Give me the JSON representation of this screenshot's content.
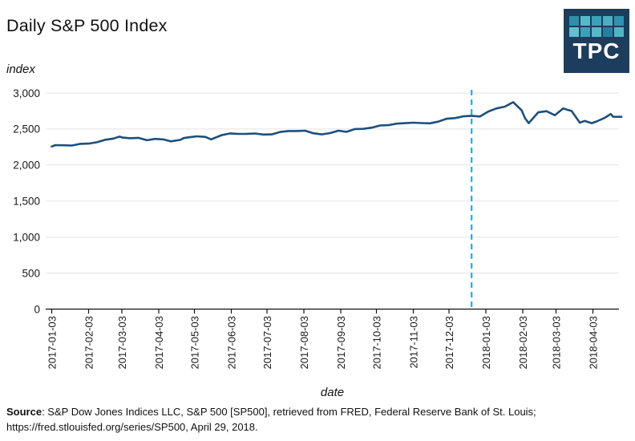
{
  "page": {
    "title": "Daily S&P 500 Index"
  },
  "logo": {
    "text": "TPC",
    "background": "#1c3d5c",
    "squares": [
      "#2e8fa9",
      "#54bac9",
      "#3aa2b8",
      "#49afc1",
      "#2f93ad",
      "#60c1cf",
      "#3aa2b8",
      "#55bac8",
      "#24809d",
      "#4fb5c4"
    ]
  },
  "chart_data": {
    "type": "line",
    "title": "Daily S&P 500 Index",
    "xlabel": "date",
    "ylabel": "index",
    "ylim": [
      0,
      3000
    ],
    "grid": true,
    "yticks": [
      0,
      500,
      1000,
      1500,
      2000,
      2500,
      3000
    ],
    "ytick_labels": [
      "0",
      "500",
      "1,000",
      "1,500",
      "2,000",
      "2,500",
      "3,000"
    ],
    "xticks": [
      "2017-01-03",
      "2017-02-03",
      "2017-03-03",
      "2017-04-03",
      "2017-05-03",
      "2017-06-03",
      "2017-07-03",
      "2017-08-03",
      "2017-09-03",
      "2017-10-03",
      "2017-11-03",
      "2017-12-03",
      "2018-01-03",
      "2018-02-03",
      "2018-03-03",
      "2018-04-03"
    ],
    "vline": {
      "date": "2017-12-22",
      "color": "#29a9e0",
      "style": "dashed"
    },
    "series": [
      {
        "name": "S&P 500",
        "color": "#1d4f7d",
        "points": [
          [
            "2017-01-03",
            2257.83
          ],
          [
            "2017-01-06",
            2276.98
          ],
          [
            "2017-01-13",
            2274.64
          ],
          [
            "2017-01-20",
            2271.31
          ],
          [
            "2017-01-27",
            2294.69
          ],
          [
            "2017-02-03",
            2297.42
          ],
          [
            "2017-02-10",
            2316.1
          ],
          [
            "2017-02-17",
            2351.16
          ],
          [
            "2017-02-24",
            2367.34
          ],
          [
            "2017-03-01",
            2395.96
          ],
          [
            "2017-03-03",
            2383.12
          ],
          [
            "2017-03-10",
            2372.6
          ],
          [
            "2017-03-17",
            2378.25
          ],
          [
            "2017-03-24",
            2343.98
          ],
          [
            "2017-03-31",
            2362.72
          ],
          [
            "2017-04-07",
            2355.54
          ],
          [
            "2017-04-13",
            2328.95
          ],
          [
            "2017-04-21",
            2348.69
          ],
          [
            "2017-04-24",
            2374.15
          ],
          [
            "2017-04-28",
            2384.2
          ],
          [
            "2017-05-05",
            2399.29
          ],
          [
            "2017-05-12",
            2390.9
          ],
          [
            "2017-05-17",
            2357.03
          ],
          [
            "2017-05-26",
            2415.82
          ],
          [
            "2017-06-02",
            2439.07
          ],
          [
            "2017-06-09",
            2431.77
          ],
          [
            "2017-06-16",
            2433.15
          ],
          [
            "2017-06-23",
            2438.3
          ],
          [
            "2017-06-30",
            2423.41
          ],
          [
            "2017-07-07",
            2425.18
          ],
          [
            "2017-07-14",
            2459.27
          ],
          [
            "2017-07-21",
            2472.54
          ],
          [
            "2017-07-28",
            2472.1
          ],
          [
            "2017-08-04",
            2476.83
          ],
          [
            "2017-08-11",
            2441.32
          ],
          [
            "2017-08-18",
            2425.55
          ],
          [
            "2017-08-25",
            2443.05
          ],
          [
            "2017-09-01",
            2476.55
          ],
          [
            "2017-09-08",
            2461.43
          ],
          [
            "2017-09-15",
            2500.23
          ],
          [
            "2017-09-22",
            2502.22
          ],
          [
            "2017-09-29",
            2519.36
          ],
          [
            "2017-10-06",
            2549.33
          ],
          [
            "2017-10-13",
            2553.17
          ],
          [
            "2017-10-20",
            2575.21
          ],
          [
            "2017-10-27",
            2581.07
          ],
          [
            "2017-11-03",
            2587.84
          ],
          [
            "2017-11-10",
            2582.3
          ],
          [
            "2017-11-17",
            2578.85
          ],
          [
            "2017-11-24",
            2602.42
          ],
          [
            "2017-12-01",
            2642.22
          ],
          [
            "2017-12-08",
            2651.5
          ],
          [
            "2017-12-15",
            2675.81
          ],
          [
            "2017-12-22",
            2683.34
          ],
          [
            "2017-12-29",
            2673.61
          ],
          [
            "2018-01-05",
            2743.15
          ],
          [
            "2018-01-12",
            2786.24
          ],
          [
            "2018-01-19",
            2810.3
          ],
          [
            "2018-01-26",
            2872.87
          ],
          [
            "2018-02-02",
            2762.13
          ],
          [
            "2018-02-05",
            2648.94
          ],
          [
            "2018-02-08",
            2581.0
          ],
          [
            "2018-02-16",
            2732.22
          ],
          [
            "2018-02-23",
            2747.3
          ],
          [
            "2018-03-02",
            2691.25
          ],
          [
            "2018-03-09",
            2786.57
          ],
          [
            "2018-03-13",
            2765.31
          ],
          [
            "2018-03-16",
            2752.01
          ],
          [
            "2018-03-23",
            2588.26
          ],
          [
            "2018-03-27",
            2612.62
          ],
          [
            "2018-04-02",
            2581.88
          ],
          [
            "2018-04-06",
            2604.47
          ],
          [
            "2018-04-13",
            2656.3
          ],
          [
            "2018-04-18",
            2708.64
          ],
          [
            "2018-04-20",
            2670.14
          ],
          [
            "2018-04-27",
            2669.91
          ]
        ]
      }
    ]
  },
  "colors": {
    "grid": "#e3e3e3",
    "axis": "#111111",
    "tick_text": "#1a1a1a"
  },
  "footer": {
    "source_label": "Source",
    "source_line1": ": S&P Dow Jones Indices LLC, S&P 500 [SP500], retrieved from FRED, Federal Reserve Bank of St. Louis;",
    "source_line2": "https://fred.stlouisfed.org/series/SP500, April 29, 2018."
  }
}
